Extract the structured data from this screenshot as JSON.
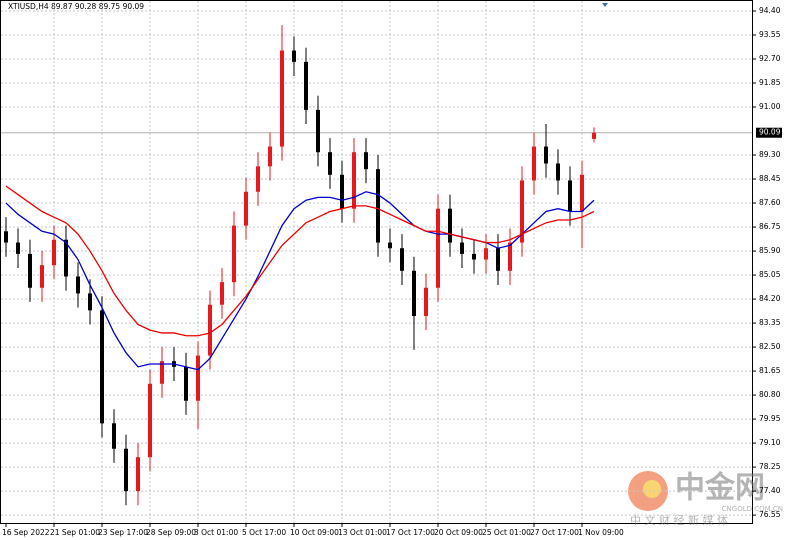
{
  "chart_data": {
    "type": "candlestick",
    "header": "XTIUSD,H4 89.87 90.28 89.75 90.09",
    "x_labels": [
      "16 Sep 2022",
      "21 Sep 01:00",
      "23 Sep 17:00",
      "28 Sep 09:00",
      "3 Oct 01:00",
      "5 Oct 17:00",
      "10 Oct 09:00",
      "13 Oct 01:00",
      "17 Oct 17:00",
      "20 Oct 09:00",
      "25 Oct 01:00",
      "27 Oct 17:00",
      "1 Nov 09:00"
    ],
    "open": [
      86.6,
      86.2,
      85.8,
      84.6,
      85.4,
      86.3,
      85.0,
      84.4,
      83.8,
      79.8,
      78.9,
      77.4,
      78.6,
      81.2,
      82.0,
      81.8,
      80.6,
      82.2,
      84.0,
      84.8,
      86.8,
      88.0,
      88.9,
      89.6,
      93.0,
      92.6,
      90.9,
      89.4,
      88.6,
      87.4,
      89.4,
      88.8,
      86.2,
      86.0,
      85.2,
      83.6,
      84.6,
      87.4,
      86.2,
      85.8,
      85.6,
      86.0,
      85.2,
      86.2,
      88.4,
      89.6,
      89.0,
      88.4,
      87.3,
      89.87
    ],
    "high": [
      87.1,
      86.7,
      86.3,
      85.9,
      86.8,
      86.8,
      85.5,
      84.9,
      84.3,
      80.3,
      79.4,
      79.1,
      81.7,
      82.5,
      82.5,
      82.3,
      82.7,
      84.5,
      85.3,
      87.3,
      88.5,
      89.4,
      90.1,
      93.9,
      93.5,
      93.1,
      91.4,
      89.9,
      89.1,
      89.9,
      89.9,
      89.3,
      86.7,
      86.5,
      85.7,
      85.1,
      87.9,
      87.9,
      86.7,
      86.3,
      86.5,
      86.5,
      86.7,
      88.9,
      90.1,
      90.4,
      89.5,
      88.9,
      89.1,
      90.28
    ],
    "low": [
      85.7,
      85.3,
      84.1,
      84.1,
      84.9,
      84.5,
      83.9,
      83.3,
      79.3,
      78.4,
      76.9,
      76.9,
      78.1,
      80.7,
      81.3,
      80.1,
      79.6,
      81.7,
      83.5,
      84.3,
      86.3,
      87.5,
      88.4,
      89.1,
      92.1,
      90.4,
      88.9,
      88.1,
      86.9,
      86.9,
      88.3,
      85.7,
      85.5,
      84.7,
      82.4,
      83.1,
      84.1,
      85.7,
      85.3,
      85.1,
      85.1,
      84.7,
      84.7,
      85.7,
      87.9,
      88.5,
      87.9,
      86.8,
      86.0,
      89.75
    ],
    "close": [
      86.2,
      85.8,
      84.6,
      85.4,
      86.3,
      85.0,
      84.4,
      83.8,
      79.8,
      78.9,
      77.4,
      78.6,
      81.2,
      82.0,
      81.8,
      80.6,
      82.2,
      84.0,
      84.8,
      86.8,
      88.0,
      88.9,
      89.6,
      93.0,
      92.6,
      90.9,
      89.4,
      88.6,
      87.4,
      89.4,
      88.8,
      86.2,
      86.0,
      85.2,
      83.6,
      84.6,
      87.4,
      86.2,
      85.8,
      85.6,
      86.0,
      85.2,
      86.2,
      88.4,
      89.6,
      89.0,
      88.4,
      87.3,
      88.6,
      90.09
    ],
    "up_color": "#e8191d",
    "down_color": "#000000",
    "series": [
      {
        "color": "#0000cc",
        "values": [
          87.6,
          87.2,
          86.9,
          86.6,
          86.5,
          86.2,
          85.6,
          84.7,
          83.9,
          83.0,
          82.3,
          81.8,
          81.9,
          81.9,
          81.9,
          81.8,
          81.7,
          82.1,
          82.8,
          83.5,
          84.2,
          85.0,
          85.9,
          86.8,
          87.4,
          87.7,
          87.8,
          87.8,
          87.7,
          87.8,
          88.0,
          87.9,
          87.6,
          87.2,
          86.8,
          86.6,
          86.5,
          86.5,
          86.4,
          86.3,
          86.2,
          86.0,
          86.1,
          86.5,
          86.9,
          87.3,
          87.4,
          87.3,
          87.3,
          87.7
        ]
      },
      {
        "color": "#ee0000",
        "values": [
          88.2,
          87.9,
          87.6,
          87.3,
          87.1,
          86.9,
          86.5,
          85.9,
          85.2,
          84.4,
          83.8,
          83.3,
          83.1,
          83.0,
          83.0,
          82.9,
          82.9,
          83.0,
          83.3,
          83.8,
          84.3,
          84.9,
          85.5,
          86.1,
          86.5,
          86.9,
          87.1,
          87.3,
          87.4,
          87.5,
          87.5,
          87.4,
          87.2,
          87.0,
          86.8,
          86.6,
          86.6,
          86.5,
          86.4,
          86.3,
          86.2,
          86.2,
          86.3,
          86.5,
          86.7,
          86.9,
          87.0,
          87.0,
          87.1,
          87.3
        ]
      }
    ],
    "current_price": 90.09,
    "ylim": [
      76.27,
      94.79
    ],
    "yticks": [
      {
        "value": 94.4,
        "label": "94.40"
      },
      {
        "value": 93.55,
        "label": "93.55"
      },
      {
        "value": 92.7,
        "label": "92.70"
      },
      {
        "value": 91.85,
        "label": "91.85"
      },
      {
        "value": 91.0,
        "label": "91.00"
      },
      {
        "value": 89.3,
        "label": "89.30"
      },
      {
        "value": 88.45,
        "label": "88.45"
      },
      {
        "value": 87.6,
        "label": "87.60"
      },
      {
        "value": 86.75,
        "label": "86.75"
      },
      {
        "value": 85.9,
        "label": "85.90"
      },
      {
        "value": 85.05,
        "label": "85.05"
      },
      {
        "value": 84.2,
        "label": "84.20"
      },
      {
        "value": 83.35,
        "label": "83.35"
      },
      {
        "value": 82.5,
        "label": "82.50"
      },
      {
        "value": 81.65,
        "label": "81.65"
      },
      {
        "value": 80.8,
        "label": "80.80"
      },
      {
        "value": 79.95,
        "label": "79.95"
      },
      {
        "value": 79.1,
        "label": "79.10"
      },
      {
        "value": 78.25,
        "label": "78.25"
      },
      {
        "value": 77.4,
        "label": "77.40"
      },
      {
        "value": 76.55,
        "label": "76.55"
      }
    ],
    "grid": true,
    "watermark": {
      "brand": "中金网",
      "site": "CNGOLD.COM.CN",
      "slogan": "中 文 财 经 新 媒 体"
    }
  }
}
